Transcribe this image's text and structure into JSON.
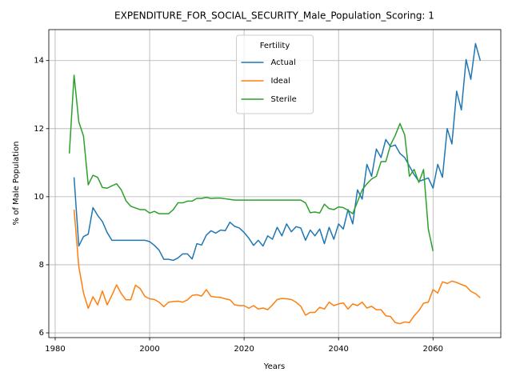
{
  "chart_data": {
    "type": "line",
    "title": "EXPENDITURE_FOR_SOCIAL_SECURITY_Male_Population_Scoring: 1",
    "xlabel": "Years",
    "ylabel": "% of Male Population",
    "legend_title": "Fertility",
    "legend": "upper center",
    "grid": true,
    "x": [
      1983,
      1984,
      1985,
      1986,
      1987,
      1988,
      1989,
      1990,
      1991,
      1992,
      1993,
      1994,
      1995,
      1996,
      1997,
      1998,
      1999,
      2000,
      2001,
      2002,
      2003,
      2004,
      2005,
      2006,
      2007,
      2008,
      2009,
      2010,
      2011,
      2012,
      2013,
      2014,
      2015,
      2016,
      2017,
      2018,
      2019,
      2020,
      2021,
      2022,
      2023,
      2024,
      2025,
      2026,
      2027,
      2028,
      2029,
      2030,
      2031,
      2032,
      2033,
      2034,
      2035,
      2036,
      2037,
      2038,
      2039,
      2040,
      2041,
      2042,
      2043,
      2044,
      2045,
      2046,
      2047,
      2048,
      2049,
      2050,
      2051,
      2052,
      2053,
      2054,
      2055,
      2056,
      2057,
      2058,
      2059,
      2060,
      2061,
      2062,
      2063,
      2064,
      2065,
      2066,
      2067,
      2068,
      2069,
      2070
    ],
    "series": [
      {
        "name": "Actual",
        "color": "#1f77b4",
        "values": [
          null,
          10.57,
          8.55,
          8.83,
          8.9,
          9.68,
          9.45,
          9.27,
          8.95,
          8.72,
          8.72,
          8.72,
          8.72,
          8.72,
          8.72,
          8.72,
          8.72,
          8.68,
          8.57,
          8.43,
          8.16,
          8.16,
          8.13,
          8.2,
          8.32,
          8.32,
          8.17,
          8.62,
          8.58,
          8.87,
          9.0,
          8.93,
          9.02,
          9.0,
          9.25,
          9.13,
          9.08,
          8.95,
          8.78,
          8.57,
          8.72,
          8.55,
          8.85,
          8.75,
          9.1,
          8.85,
          9.2,
          8.97,
          9.12,
          9.08,
          8.72,
          9.02,
          8.85,
          9.05,
          8.62,
          9.1,
          8.75,
          9.2,
          9.05,
          9.62,
          9.2,
          10.2,
          9.93,
          10.95,
          10.6,
          11.4,
          11.15,
          11.68,
          11.47,
          11.52,
          11.27,
          11.15,
          10.9,
          10.65,
          10.45,
          10.5,
          10.55,
          10.25,
          10.95,
          10.57,
          12.0,
          11.55,
          13.1,
          12.55,
          14.03,
          13.45,
          14.5,
          14.0
        ]
      },
      {
        "name": "Ideal",
        "color": "#ff7f0e",
        "values": [
          null,
          9.62,
          7.95,
          7.17,
          6.72,
          7.06,
          6.82,
          7.23,
          6.82,
          7.1,
          7.41,
          7.15,
          6.97,
          6.97,
          7.4,
          7.3,
          7.07,
          7.0,
          6.98,
          6.9,
          6.77,
          6.9,
          6.92,
          6.93,
          6.9,
          6.97,
          7.1,
          7.12,
          7.08,
          7.27,
          7.07,
          7.05,
          7.04,
          7.0,
          6.97,
          6.82,
          6.8,
          6.8,
          6.72,
          6.8,
          6.7,
          6.73,
          6.68,
          6.82,
          6.98,
          7.01,
          7.0,
          6.98,
          6.9,
          6.78,
          6.52,
          6.6,
          6.6,
          6.75,
          6.7,
          6.9,
          6.8,
          6.85,
          6.88,
          6.7,
          6.85,
          6.8,
          6.9,
          6.73,
          6.78,
          6.68,
          6.68,
          6.5,
          6.48,
          6.3,
          6.27,
          6.32,
          6.3,
          6.5,
          6.65,
          6.87,
          6.9,
          7.27,
          7.17,
          7.5,
          7.45,
          7.52,
          7.48,
          7.42,
          7.37,
          7.22,
          7.15,
          7.03
        ]
      },
      {
        "name": "Sterile",
        "color": "#2ca02c",
        "values": [
          11.27,
          13.57,
          12.2,
          11.78,
          10.35,
          10.63,
          10.57,
          10.27,
          10.25,
          10.32,
          10.38,
          10.2,
          9.88,
          9.72,
          9.67,
          9.62,
          9.62,
          9.52,
          9.57,
          9.5,
          9.5,
          9.5,
          9.62,
          9.82,
          9.82,
          9.87,
          9.87,
          9.95,
          9.95,
          9.98,
          9.95,
          9.96,
          9.96,
          9.94,
          9.92,
          9.9,
          9.9,
          9.9,
          9.9,
          9.9,
          9.9,
          9.9,
          9.9,
          9.9,
          9.9,
          9.9,
          9.9,
          9.9,
          9.9,
          9.9,
          9.82,
          9.53,
          9.55,
          9.52,
          9.78,
          9.65,
          9.62,
          9.7,
          9.68,
          9.6,
          9.5,
          9.85,
          10.2,
          10.38,
          10.52,
          10.6,
          11.03,
          11.03,
          11.52,
          11.8,
          12.15,
          11.82,
          10.6,
          10.8,
          10.42,
          10.8,
          9.05,
          8.4,
          null,
          null,
          null,
          null,
          null,
          null,
          null,
          null,
          null,
          null
        ]
      }
    ],
    "xlim": [
      1978.65,
      2074.35
    ],
    "xticks": [
      1980,
      2000,
      2020,
      2040,
      2060
    ],
    "ylim": [
      5.86,
      14.91
    ],
    "yticks": [
      6,
      8,
      10,
      12,
      14
    ]
  }
}
